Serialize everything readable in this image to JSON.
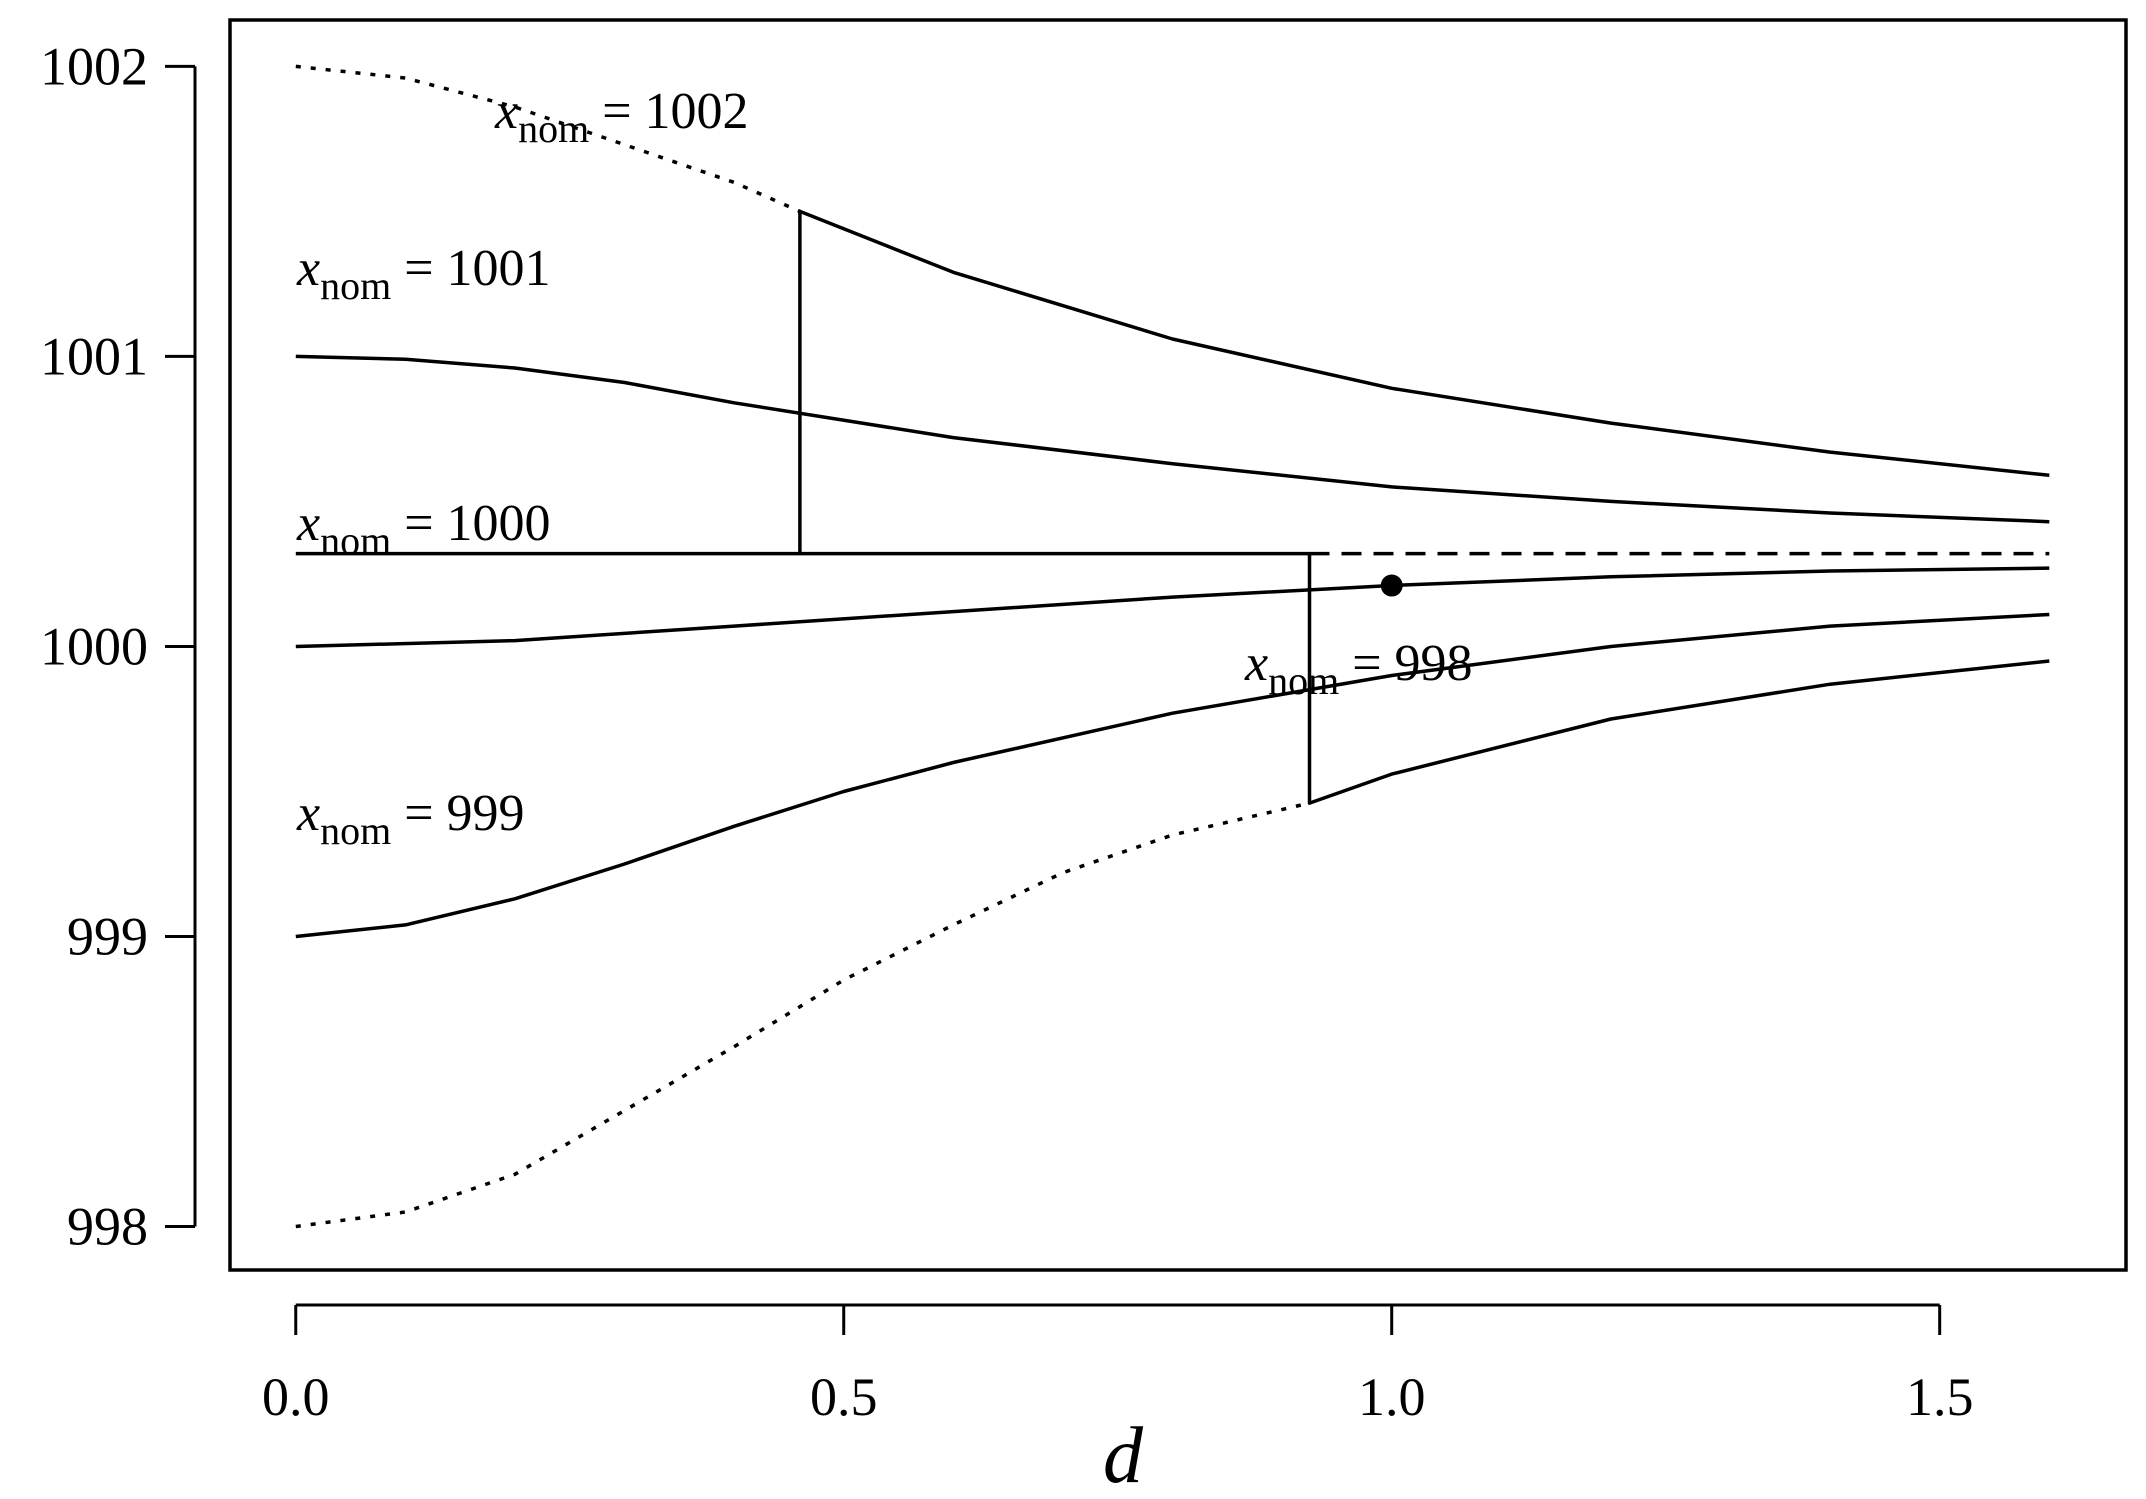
{
  "chart_data": {
    "type": "line",
    "title": "",
    "xlabel": "d",
    "ylabel": "",
    "xlim": [
      -0.06,
      1.67
    ],
    "ylim": [
      997.85,
      1002.16
    ],
    "xticks": [
      0.0,
      0.5,
      1.0,
      1.5
    ],
    "xtick_labels": [
      "0.0",
      "0.5",
      "1.0",
      "1.5"
    ],
    "yticks": [
      998,
      999,
      1000,
      1001,
      1002
    ],
    "ytick_labels": [
      "998",
      "999",
      "1000",
      "1001",
      "1002"
    ],
    "grid": false,
    "legend": "none",
    "series": [
      {
        "label_var": "x",
        "label_sub": "nom",
        "label_rest": " = 1002",
        "style": "dotted",
        "x": [
          0.0,
          0.1,
          0.2,
          0.3,
          0.4,
          0.46
        ],
        "y": [
          1002.0,
          1001.96,
          1001.86,
          1001.73,
          1001.6,
          1001.5
        ]
      },
      {
        "style": "solid",
        "x": [
          0.46,
          0.6,
          0.8,
          1.0,
          1.2,
          1.4,
          1.6
        ],
        "y": [
          1001.5,
          1001.29,
          1001.06,
          1000.89,
          1000.77,
          1000.67,
          1000.59
        ]
      },
      {
        "label_var": "x",
        "label_sub": "nom",
        "label_rest": " = 1001",
        "style": "solid",
        "x": [
          0.0,
          0.1,
          0.2,
          0.3,
          0.4,
          0.6,
          0.8,
          1.0,
          1.2,
          1.4,
          1.6
        ],
        "y": [
          1001.0,
          1000.99,
          1000.96,
          1000.91,
          1000.84,
          1000.72,
          1000.63,
          1000.55,
          1000.5,
          1000.46,
          1000.43
        ]
      },
      {
        "label_var": "x",
        "label_sub": "nom",
        "label_rest": " = 1000",
        "style": "solid",
        "x": [
          0.0,
          0.2,
          0.4,
          0.6,
          0.8,
          1.0,
          1.2,
          1.4,
          1.6
        ],
        "y": [
          1000.0,
          1000.02,
          1000.07,
          1000.12,
          1000.17,
          1000.21,
          1000.24,
          1000.26,
          1000.27
        ]
      },
      {
        "label_var": "x",
        "label_sub": "nom",
        "label_rest": " = 999",
        "style": "solid",
        "x": [
          0.0,
          0.1,
          0.2,
          0.3,
          0.4,
          0.5,
          0.6,
          0.8,
          1.0,
          1.2,
          1.4,
          1.6
        ],
        "y": [
          999.0,
          999.04,
          999.13,
          999.25,
          999.38,
          999.5,
          999.6,
          999.77,
          999.9,
          1000.0,
          1000.07,
          1000.11
        ]
      },
      {
        "label_var": "x",
        "label_sub": "nom",
        "label_rest": " = 998",
        "style": "dotted",
        "x": [
          0.0,
          0.1,
          0.2,
          0.3,
          0.4,
          0.5,
          0.6,
          0.7,
          0.8,
          0.925
        ],
        "y": [
          998.0,
          998.05,
          998.18,
          998.4,
          998.62,
          998.85,
          999.04,
          999.22,
          999.35,
          999.46
        ]
      },
      {
        "style": "solid",
        "x": [
          0.925,
          1.0,
          1.2,
          1.4,
          1.6
        ],
        "y": [
          999.46,
          999.56,
          999.75,
          999.87,
          999.95
        ]
      },
      {
        "style": "solid",
        "x": [
          0.0,
          0.46,
          0.46,
          0.46,
          0.925,
          0.925,
          0.925
        ],
        "y": [
          1000.32,
          1000.32,
          1001.5,
          1000.32,
          1000.32,
          999.46,
          1000.32
        ]
      },
      {
        "style": "dashed",
        "x": [
          0.925,
          1.6
        ],
        "y": [
          1000.32,
          1000.32
        ]
      }
    ],
    "point": {
      "x": 1.0,
      "y": 1000.21
    }
  }
}
